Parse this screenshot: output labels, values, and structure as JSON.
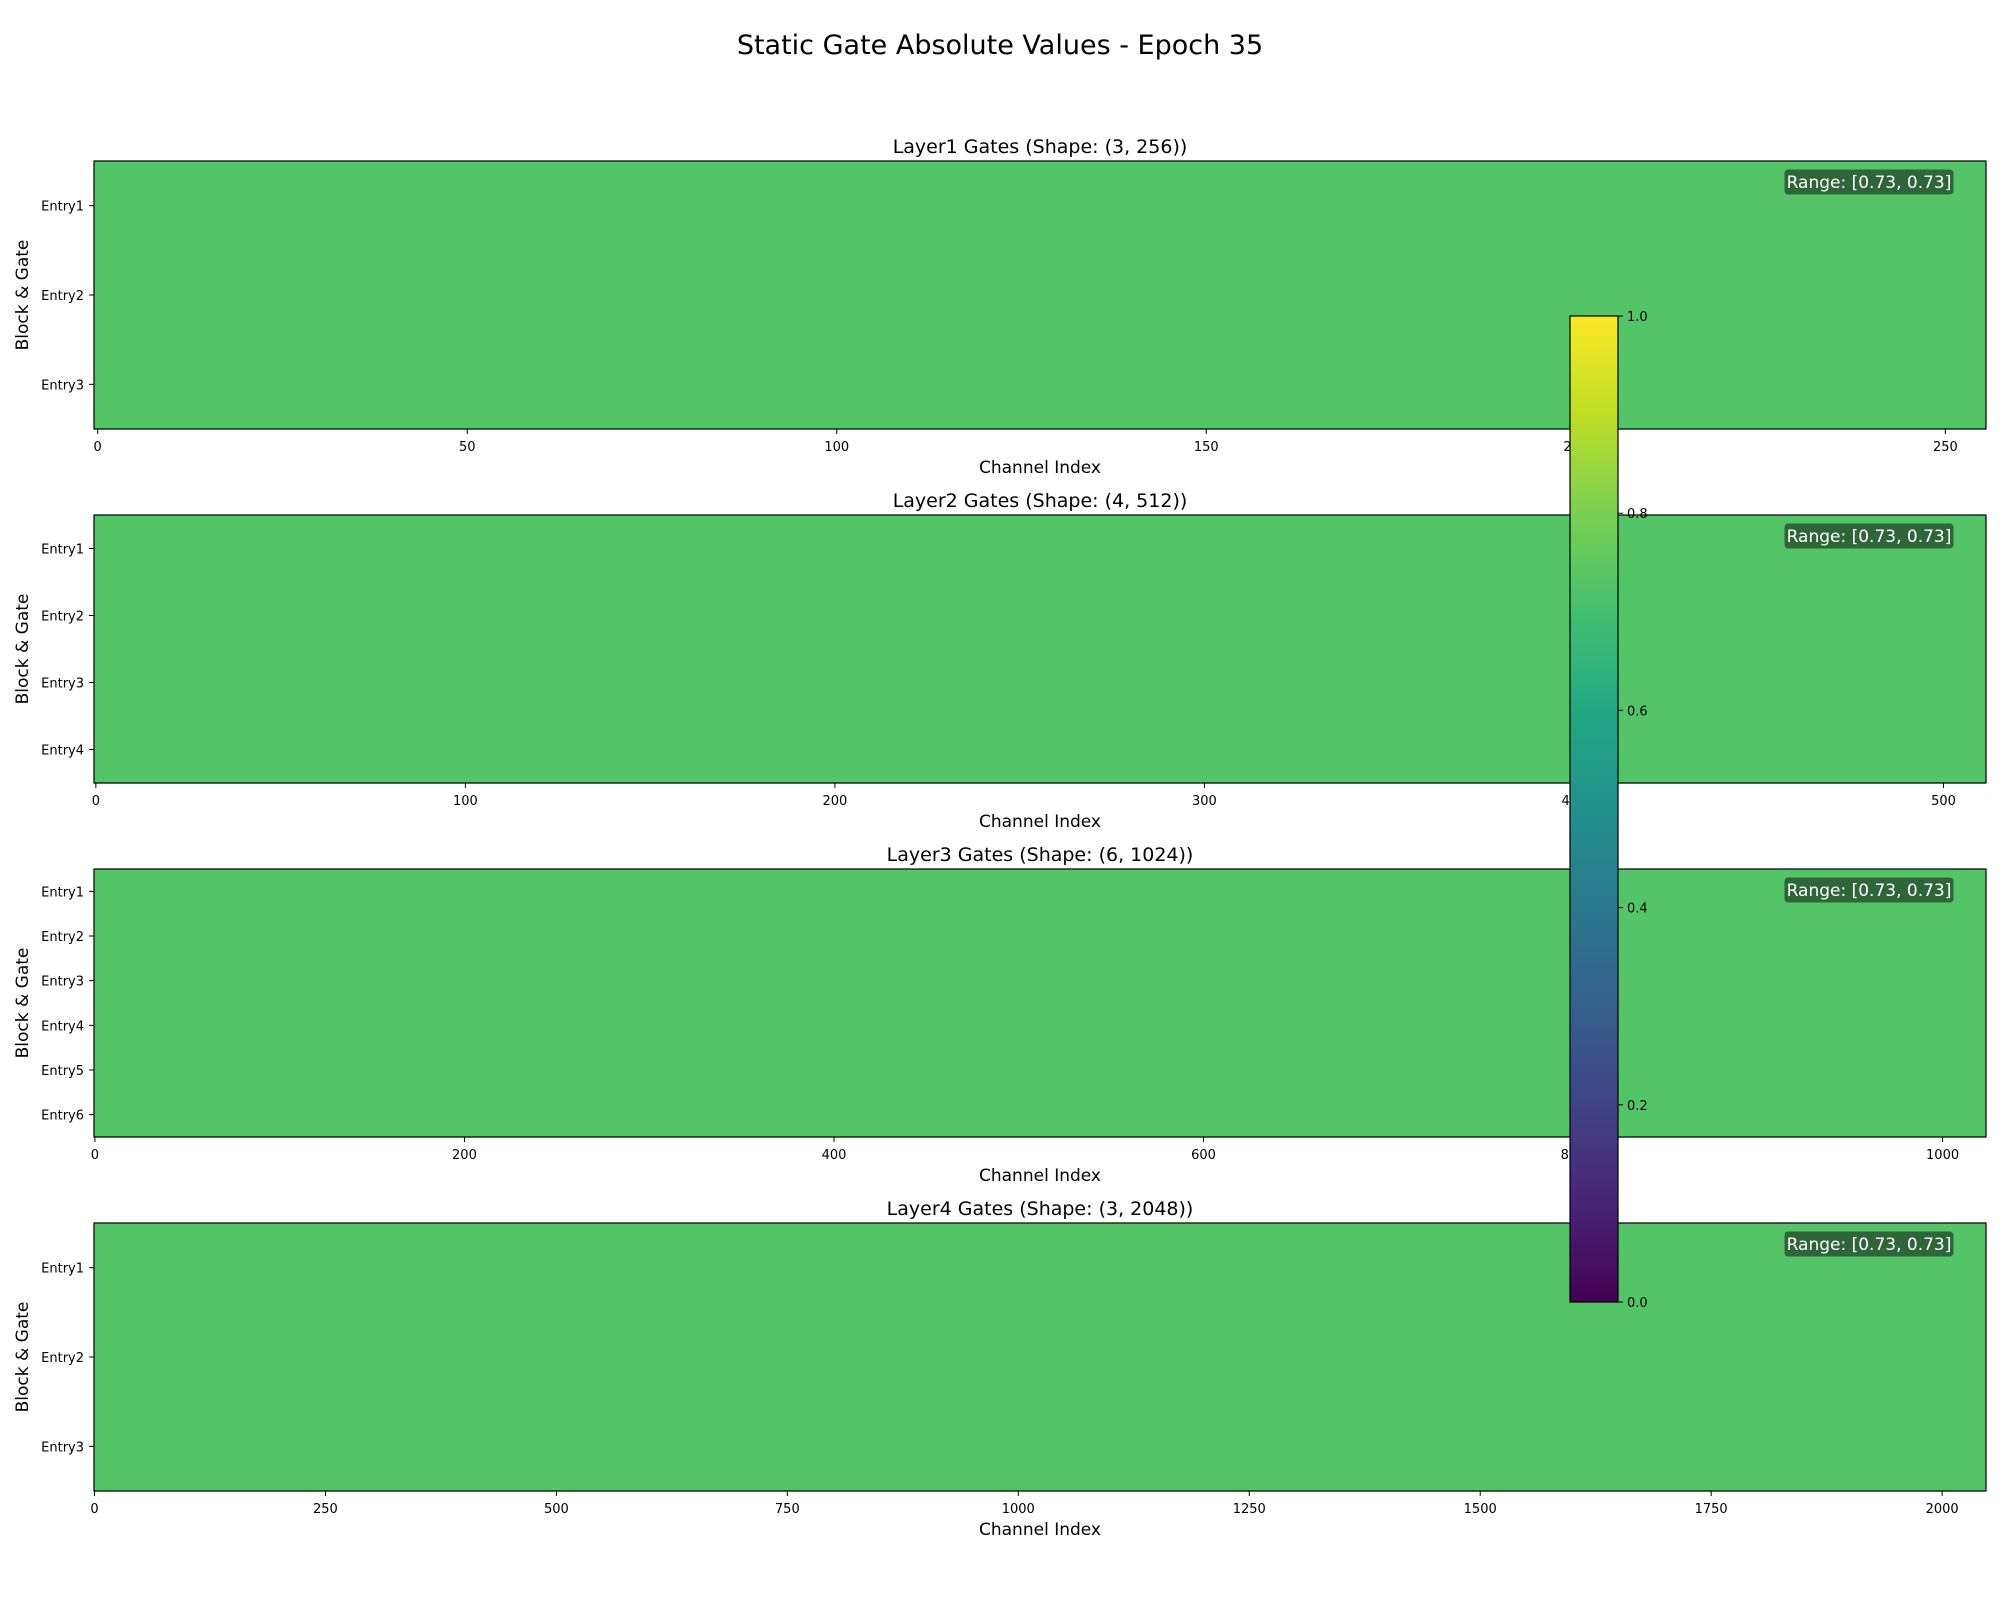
{
  "title": "Static Gate Absolute Values - Epoch 35",
  "colors": {
    "cell": "#53c567",
    "range_box_fill": "#2d5e36",
    "range_box_stroke": "#53c567",
    "colormap": "viridis"
  },
  "chart_data": [
    {
      "type": "heatmap",
      "title": "Layer1 Gates (Shape: (3, 256))",
      "xlabel": "Channel Index",
      "ylabel": "Block & Gate",
      "rows": [
        "Entry1",
        "Entry2",
        "Entry3"
      ],
      "n_channels": 256,
      "xlim": [
        0,
        256
      ],
      "xticks": [
        0,
        50,
        100,
        150,
        200,
        250
      ],
      "value": 0.73,
      "range_label": "Range: [0.73, 0.73]"
    },
    {
      "type": "heatmap",
      "title": "Layer2 Gates (Shape: (4, 512))",
      "xlabel": "Channel Index",
      "ylabel": "Block & Gate",
      "rows": [
        "Entry1",
        "Entry2",
        "Entry3",
        "Entry4"
      ],
      "n_channels": 512,
      "xlim": [
        0,
        512
      ],
      "xticks": [
        0,
        100,
        200,
        300,
        400,
        500
      ],
      "value": 0.73,
      "range_label": "Range: [0.73, 0.73]"
    },
    {
      "type": "heatmap",
      "title": "Layer3 Gates (Shape: (6, 1024))",
      "xlabel": "Channel Index",
      "ylabel": "Block & Gate",
      "rows": [
        "Entry1",
        "Entry2",
        "Entry3",
        "Entry4",
        "Entry5",
        "Entry6"
      ],
      "n_channels": 1024,
      "xlim": [
        0,
        1024
      ],
      "xticks": [
        0,
        200,
        400,
        600,
        800,
        1000
      ],
      "value": 0.73,
      "range_label": "Range: [0.73, 0.73]"
    },
    {
      "type": "heatmap",
      "title": "Layer4 Gates (Shape: (3, 2048))",
      "xlabel": "Channel Index",
      "ylabel": "Block & Gate",
      "rows": [
        "Entry1",
        "Entry2",
        "Entry3"
      ],
      "n_channels": 2048,
      "xlim": [
        0,
        2048
      ],
      "xticks": [
        0,
        250,
        500,
        750,
        1000,
        1250,
        1500,
        1750,
        2000
      ],
      "value": 0.73,
      "range_label": "Range: [0.73, 0.73]"
    }
  ],
  "colorbar": {
    "range": [
      0.0,
      1.0
    ],
    "ticks": [
      "0.0",
      "0.2",
      "0.4",
      "0.6",
      "0.8",
      "1.0"
    ]
  }
}
